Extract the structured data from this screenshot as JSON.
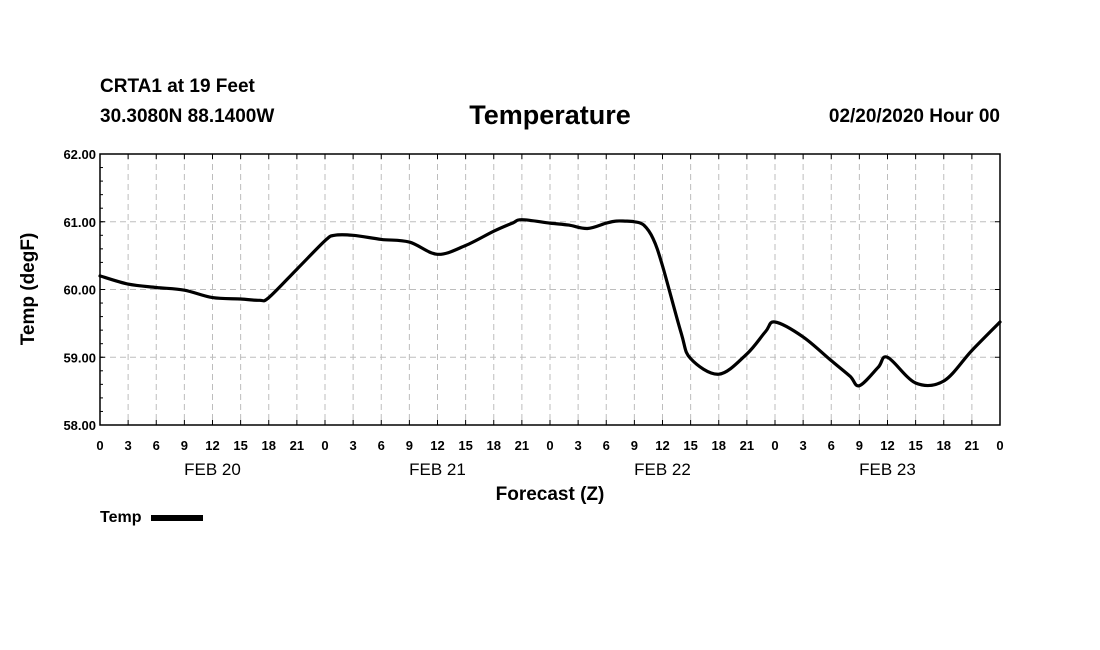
{
  "header": {
    "station": "CRTA1 at 19 Feet",
    "coords": "30.3080N 88.1400W",
    "title": "Temperature",
    "run_time": "02/20/2020 Hour 00"
  },
  "chart_data": {
    "type": "line",
    "title": "Temperature",
    "xlabel": "Forecast (Z)",
    "ylabel": "Temp (degF)",
    "ylim": [
      58.0,
      62.0
    ],
    "yticks": [
      "58.00",
      "59.00",
      "60.00",
      "61.00",
      "62.00"
    ],
    "xticks": [
      "0",
      "3",
      "6",
      "9",
      "12",
      "15",
      "18",
      "21",
      "0",
      "3",
      "6",
      "9",
      "12",
      "15",
      "18",
      "21",
      "0",
      "3",
      "6",
      "9",
      "12",
      "15",
      "18",
      "21",
      "0",
      "3",
      "6",
      "9",
      "12",
      "15",
      "18",
      "21",
      "0"
    ],
    "day_labels": [
      "FEB 20",
      "FEB 21",
      "FEB 22",
      "FEB 23"
    ],
    "grid": true,
    "x_unit": "hours from 02/20/2020 00Z",
    "xlim": [
      0,
      96
    ],
    "legend": "bottom-left",
    "series": [
      {
        "name": "Temp",
        "color": "#000000",
        "x": [
          0,
          3,
          6,
          9,
          12,
          15,
          17,
          18,
          21,
          24,
          25,
          27,
          30,
          33,
          36,
          39,
          42,
          44,
          45,
          48,
          50,
          52,
          54,
          55,
          56,
          57,
          58,
          59,
          60,
          62,
          63,
          66,
          69,
          71,
          72,
          75,
          78,
          80,
          81,
          83,
          84,
          87,
          90,
          93,
          96
        ],
        "values": [
          60.2,
          60.08,
          60.03,
          59.99,
          59.88,
          59.86,
          59.84,
          59.88,
          60.3,
          60.72,
          60.8,
          60.8,
          60.74,
          60.7,
          60.52,
          60.65,
          60.86,
          60.98,
          61.03,
          60.98,
          60.95,
          60.9,
          60.98,
          61.01,
          61.01,
          61.0,
          60.95,
          60.75,
          60.35,
          59.35,
          58.98,
          58.75,
          59.05,
          59.38,
          59.52,
          59.3,
          58.95,
          58.72,
          58.58,
          58.85,
          59.0,
          58.62,
          58.65,
          59.1,
          59.52
        ]
      }
    ]
  },
  "legend": {
    "label": "Temp"
  }
}
